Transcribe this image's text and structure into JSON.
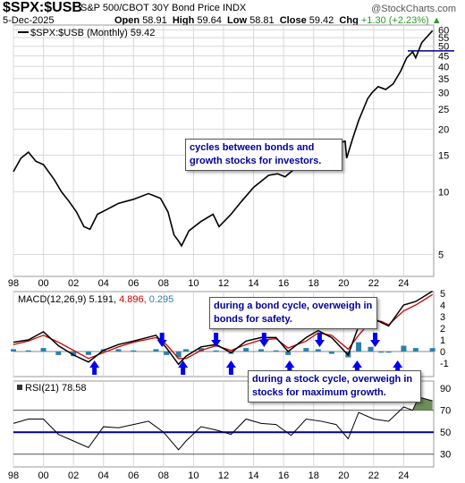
{
  "header": {
    "symbol": "$SPX:$USB",
    "name": "S&P 500/CBOT 30Y Bond Price INDX",
    "watermark": "@StockCharts.com",
    "date": "5-Dec-2025",
    "open_label": "Open",
    "open": "58.91",
    "high_label": "High",
    "high": "59.64",
    "low_label": "Low",
    "low": "58.81",
    "close_label": "Close",
    "close": "59.42",
    "chg_label": "Chg",
    "chg": "+1.30 (+2.23%)"
  },
  "annotations": {
    "note1": "cycles between bonds and growth stocks for investors.",
    "note2": "during a bond cycle, overweigh in bonds for safety.",
    "note3": "during a stock cycle, overweigh in stocks for maximum growth."
  },
  "colors": {
    "price_line": "#000000",
    "macd_line": "#000000",
    "signal_line": "#cc0000",
    "histogram": "#2e7fa8",
    "rsi_line": "#000000",
    "rsi_overbought_fill": "#6b8e5a",
    "reference_line": "#00008b",
    "arrow": "#0000ee",
    "grid": "#d8d8d8"
  },
  "chart_data": [
    {
      "type": "line",
      "panel": "price",
      "legend": "$SPX:$USB (Monthly) 59.42",
      "scale": "log",
      "ylim": [
        4,
        62
      ],
      "yticks": [
        5,
        10,
        15,
        20,
        25,
        30,
        35,
        40,
        45,
        50,
        55,
        60
      ],
      "reference_line": 47.5,
      "x": [
        1998.0,
        1998.5,
        1999.0,
        1999.5,
        2000.0,
        2000.7,
        2001.2,
        2001.7,
        2002.2,
        2002.7,
        2003.1,
        2003.6,
        2004.2,
        2005.0,
        2006.0,
        2007.0,
        2007.8,
        2008.3,
        2008.7,
        2009.0,
        2009.2,
        2009.7,
        2010.5,
        2011.3,
        2011.7,
        2012.5,
        2013.2,
        2014.0,
        2015.0,
        2015.6,
        2016.1,
        2016.8,
        2017.5,
        2018.0,
        2018.4,
        2018.9,
        2019.5,
        2020.1,
        2020.2,
        2020.6,
        2021.0,
        2021.6,
        2021.9,
        2022.3,
        2022.8,
        2023.3,
        2023.8,
        2024.2,
        2024.6,
        2024.8,
        2025.2,
        2025.5,
        2025.92
      ],
      "values": [
        12.5,
        14.5,
        15.5,
        14.0,
        13.5,
        11.5,
        10.0,
        9.0,
        8.0,
        6.8,
        6.6,
        7.8,
        8.2,
        8.8,
        9.2,
        9.8,
        9.3,
        8.0,
        6.2,
        5.8,
        5.5,
        6.5,
        7.2,
        7.8,
        6.8,
        7.8,
        9.0,
        10.5,
        12.0,
        12.2,
        11.8,
        13.0,
        14.0,
        15.5,
        16.0,
        14.5,
        17.0,
        17.5,
        14.5,
        18.0,
        22.0,
        28.0,
        30.0,
        32.0,
        31.0,
        33.0,
        38.0,
        44.0,
        47.0,
        44.0,
        52.0,
        55.0,
        59.42
      ]
    },
    {
      "type": "line",
      "panel": "macd",
      "legend": "MACD(12,26,9) 5.191, 4.896, 0.295",
      "ylim": [
        -2,
        5
      ],
      "yticks": [
        -1,
        0,
        1,
        2,
        3,
        4,
        5
      ],
      "x": [
        1998.0,
        1999.0,
        2000.0,
        2001.0,
        2002.0,
        2003.0,
        2004.0,
        2005.0,
        2006.0,
        2007.5,
        2008.2,
        2009.0,
        2009.5,
        2010.5,
        2011.5,
        2012.5,
        2013.5,
        2014.5,
        2015.5,
        2016.3,
        2017.5,
        2018.3,
        2019.2,
        2020.3,
        2021.0,
        2021.8,
        2022.5,
        2023.0,
        2024.0,
        2024.8,
        2025.92
      ],
      "series": [
        {
          "name": "MACD",
          "values": [
            0.8,
            1.0,
            1.7,
            0.5,
            -0.3,
            -0.9,
            0.1,
            0.6,
            0.9,
            1.4,
            0.3,
            -1.1,
            -0.4,
            0.4,
            0.6,
            -0.1,
            0.9,
            1.2,
            1.2,
            0.0,
            1.2,
            1.8,
            1.2,
            -0.3,
            2.2,
            3.0,
            2.5,
            2.2,
            4.0,
            4.3,
            5.191
          ]
        },
        {
          "name": "Signal",
          "values": [
            0.6,
            0.9,
            1.4,
            0.8,
            0.1,
            -0.6,
            -0.1,
            0.4,
            0.8,
            1.2,
            0.6,
            -0.6,
            -0.6,
            0.1,
            0.5,
            0.1,
            0.6,
            1.0,
            1.1,
            0.3,
            0.9,
            1.6,
            1.4,
            0.2,
            1.4,
            2.6,
            2.6,
            2.3,
            3.5,
            4.0,
            4.896
          ]
        },
        {
          "name": "Histogram",
          "values": [
            0.2,
            0.1,
            0.3,
            -0.3,
            -0.4,
            -0.3,
            0.2,
            0.2,
            0.1,
            0.2,
            -0.3,
            -0.5,
            0.2,
            0.3,
            0.1,
            -0.2,
            0.3,
            0.2,
            0.1,
            -0.3,
            0.3,
            0.2,
            -0.2,
            -0.5,
            0.8,
            0.4,
            -0.1,
            -0.1,
            0.5,
            0.3,
            0.295
          ]
        }
      ],
      "arrows_down": [
        2007.9,
        2011.5,
        2014.7,
        2018.4,
        2022.1
      ],
      "arrows_up": [
        2003.4,
        2009.3,
        2012.5,
        2016.4,
        2020.9,
        2023.6
      ]
    },
    {
      "type": "line",
      "panel": "rsi",
      "legend": "RSI(21) 78.58",
      "ylim": [
        20,
        95
      ],
      "yticks": [
        30,
        50,
        70,
        90
      ],
      "reference_lines": [
        30,
        50,
        70
      ],
      "x": [
        1998.0,
        1999.0,
        2000.0,
        2001.0,
        2002.0,
        2003.0,
        2004.0,
        2005.0,
        2006.0,
        2007.0,
        2008.0,
        2009.0,
        2009.5,
        2010.5,
        2011.5,
        2012.5,
        2013.5,
        2014.5,
        2015.5,
        2016.5,
        2017.5,
        2018.5,
        2019.5,
        2020.3,
        2021.0,
        2022.0,
        2023.0,
        2024.0,
        2024.6,
        2025.0,
        2025.92
      ],
      "values": [
        58,
        62,
        62,
        48,
        42,
        36,
        55,
        54,
        57,
        60,
        50,
        34,
        42,
        55,
        52,
        48,
        62,
        58,
        57,
        47,
        62,
        60,
        57,
        44,
        68,
        62,
        60,
        73,
        70,
        82,
        78.58
      ]
    }
  ],
  "x_axis": {
    "ticks": [
      1998,
      2000,
      2002,
      2004,
      2006,
      2008,
      2010,
      2012,
      2014,
      2016,
      2018,
      2020,
      2022,
      2024
    ],
    "labels": [
      "98",
      "00",
      "02",
      "04",
      "06",
      "08",
      "10",
      "12",
      "14",
      "16",
      "18",
      "20",
      "22",
      "24"
    ]
  }
}
